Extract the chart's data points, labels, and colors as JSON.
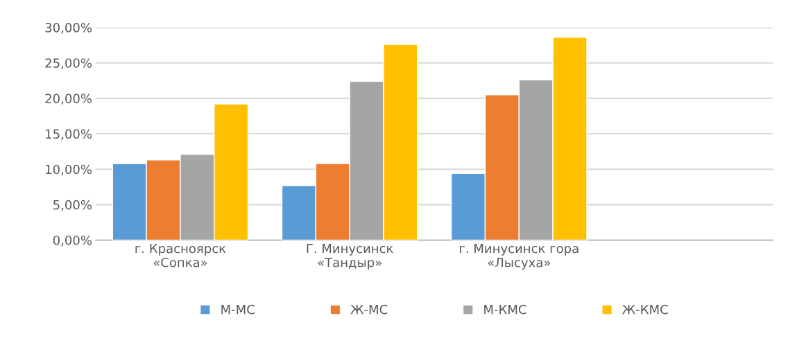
{
  "chart_data": {
    "type": "bar",
    "categories": [
      "г. Красноярск\n«Сопка»",
      "Г. Минусинск\n«Тандыр»",
      "г. Минусинск гора\n«Лысуха»",
      null
    ],
    "series": [
      {
        "name": "М-МС",
        "color": "#5b9bd5",
        "values": [
          10.8,
          7.7,
          9.4,
          null
        ]
      },
      {
        "name": "Ж-МС",
        "color": "#ed7d31",
        "values": [
          11.3,
          10.8,
          20.5,
          null
        ]
      },
      {
        "name": "М-КМС",
        "color": "#a5a5a5",
        "values": [
          12.1,
          22.4,
          22.6,
          null
        ]
      },
      {
        "name": "Ж-КМС",
        "color": "#ffc000",
        "values": [
          19.2,
          27.6,
          28.6,
          null
        ]
      }
    ],
    "ylim": [
      0,
      30
    ],
    "yticks": [
      {
        "value": 0,
        "label": "0,00%"
      },
      {
        "value": 5,
        "label": "5,00%"
      },
      {
        "value": 10,
        "label": "10,00%"
      },
      {
        "value": 15,
        "label": "15,00%"
      },
      {
        "value": 20,
        "label": "20,00%"
      },
      {
        "value": 25,
        "label": "25,00%"
      },
      {
        "value": 30,
        "label": "30,00%"
      }
    ],
    "grid": "y",
    "legend": "bottom"
  }
}
